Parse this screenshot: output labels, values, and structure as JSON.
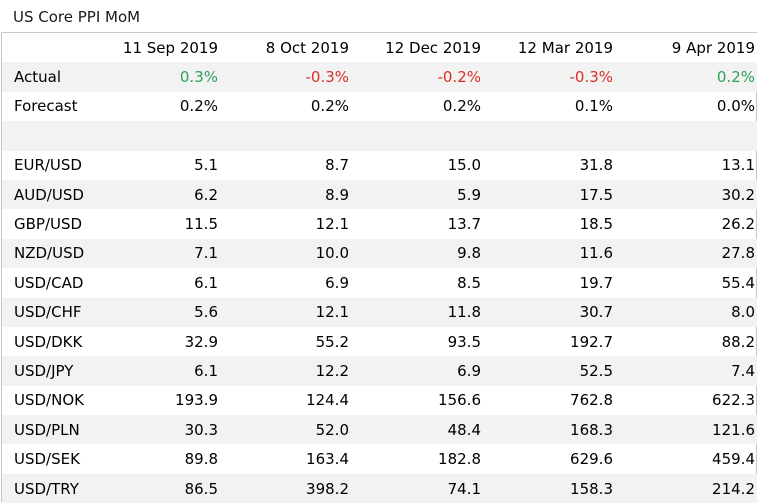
{
  "title": "US Core PPI MoM",
  "columns": [
    "11 Sep 2019",
    "8 Oct 2019",
    "12 Dec 2019",
    "12 Mar 2019",
    "9 Apr 2019"
  ],
  "actual": {
    "label": "Actual",
    "values": [
      "0.3%",
      "-0.3%",
      "-0.2%",
      "-0.3%",
      "0.2%"
    ],
    "signs": [
      "pos",
      "neg",
      "neg",
      "neg",
      "pos"
    ]
  },
  "forecast": {
    "label": "Forecast",
    "values": [
      "0.2%",
      "0.2%",
      "0.2%",
      "0.1%",
      "0.0%"
    ]
  },
  "pairs": [
    {
      "label": "EUR/USD",
      "values": [
        "5.1",
        "8.7",
        "15.0",
        "31.8",
        "13.1"
      ]
    },
    {
      "label": "AUD/USD",
      "values": [
        "6.2",
        "8.9",
        "5.9",
        "17.5",
        "30.2"
      ]
    },
    {
      "label": "GBP/USD",
      "values": [
        "11.5",
        "12.1",
        "13.7",
        "18.5",
        "26.2"
      ]
    },
    {
      "label": "NZD/USD",
      "values": [
        "7.1",
        "10.0",
        "9.8",
        "11.6",
        "27.8"
      ]
    },
    {
      "label": "USD/CAD",
      "values": [
        "6.1",
        "6.9",
        "8.5",
        "19.7",
        "55.4"
      ]
    },
    {
      "label": "USD/CHF",
      "values": [
        "5.6",
        "12.1",
        "11.8",
        "30.7",
        "8.0"
      ]
    },
    {
      "label": "USD/DKK",
      "values": [
        "32.9",
        "55.2",
        "93.5",
        "192.7",
        "88.2"
      ]
    },
    {
      "label": "USD/JPY",
      "values": [
        "6.1",
        "12.2",
        "6.9",
        "52.5",
        "7.4"
      ]
    },
    {
      "label": "USD/NOK",
      "values": [
        "193.9",
        "124.4",
        "156.6",
        "762.8",
        "622.3"
      ]
    },
    {
      "label": "USD/PLN",
      "values": [
        "30.3",
        "52.0",
        "48.4",
        "168.3",
        "121.6"
      ]
    },
    {
      "label": "USD/SEK",
      "values": [
        "89.8",
        "163.4",
        "182.8",
        "629.6",
        "459.4"
      ]
    },
    {
      "label": "USD/TRY",
      "values": [
        "86.5",
        "398.2",
        "74.1",
        "158.3",
        "214.2"
      ]
    }
  ],
  "colors": {
    "positive": "#2ea05a",
    "negative": "#d9302a",
    "row_shade": "#f2f2f2",
    "border": "#c8c8c8"
  }
}
